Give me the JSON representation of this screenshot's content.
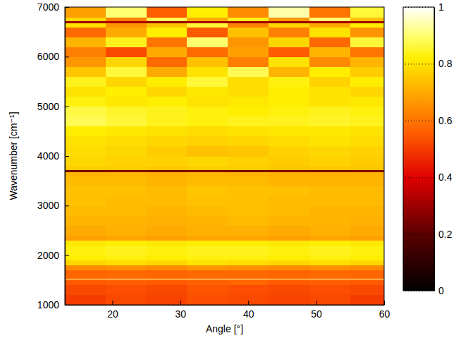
{
  "chart_data": {
    "type": "heatmap",
    "color": "hot",
    "x_label": "Angle [°]",
    "y_label": "Wavenumber [cm⁻¹]",
    "xlim": [
      13,
      60
    ],
    "ylim": [
      1000,
      7000
    ],
    "xticks": [
      20,
      30,
      40,
      50,
      60
    ],
    "yticks": [
      1000,
      2000,
      3000,
      4000,
      5000,
      6000,
      7000
    ],
    "color_range": [
      0,
      1
    ],
    "color_ticks": [
      0,
      0.2,
      0.4,
      0.6,
      0.8,
      1
    ],
    "x_edges": [
      13,
      19,
      25,
      31,
      37,
      43,
      49,
      55,
      60
    ],
    "y_edges": [
      1000,
      1200,
      1400,
      1500,
      1520,
      1540,
      1700,
      1800,
      1900,
      2000,
      2200,
      2300,
      2400,
      2600,
      2800,
      3000,
      3200,
      3400,
      3600,
      3680,
      3720,
      3800,
      4000,
      4200,
      4400,
      4600,
      4800,
      5000,
      5200,
      5400,
      5600,
      5800,
      6000,
      6200,
      6400,
      6600,
      6680,
      6720,
      6800,
      7000
    ],
    "cells": [
      [
        0.5,
        0.52,
        0.51,
        0.53,
        0.52,
        0.51,
        0.52,
        0.5
      ],
      [
        0.52,
        0.53,
        0.52,
        0.54,
        0.53,
        0.52,
        0.53,
        0.52
      ],
      [
        0.55,
        0.56,
        0.55,
        0.56,
        0.57,
        0.55,
        0.56,
        0.55
      ],
      [
        0.58,
        0.58,
        0.59,
        0.58,
        0.59,
        0.58,
        0.58,
        0.59
      ],
      [
        0.93,
        0.94,
        0.93,
        0.94,
        0.94,
        0.93,
        0.94,
        0.93
      ],
      [
        0.57,
        0.58,
        0.57,
        0.58,
        0.58,
        0.57,
        0.58,
        0.57
      ],
      [
        0.64,
        0.65,
        0.64,
        0.66,
        0.65,
        0.64,
        0.65,
        0.64
      ],
      [
        0.78,
        0.79,
        0.78,
        0.8,
        0.79,
        0.78,
        0.79,
        0.78
      ],
      [
        0.82,
        0.83,
        0.82,
        0.83,
        0.83,
        0.82,
        0.83,
        0.82
      ],
      [
        0.83,
        0.84,
        0.83,
        0.84,
        0.84,
        0.83,
        0.84,
        0.83
      ],
      [
        0.81,
        0.82,
        0.81,
        0.82,
        0.82,
        0.81,
        0.82,
        0.81
      ],
      [
        0.68,
        0.69,
        0.68,
        0.69,
        0.69,
        0.68,
        0.69,
        0.68
      ],
      [
        0.7,
        0.71,
        0.7,
        0.71,
        0.71,
        0.7,
        0.71,
        0.7
      ],
      [
        0.72,
        0.72,
        0.71,
        0.72,
        0.73,
        0.72,
        0.72,
        0.71
      ],
      [
        0.73,
        0.73,
        0.72,
        0.73,
        0.74,
        0.73,
        0.72,
        0.72
      ],
      [
        0.74,
        0.73,
        0.73,
        0.74,
        0.74,
        0.73,
        0.73,
        0.73
      ],
      [
        0.74,
        0.74,
        0.73,
        0.75,
        0.74,
        0.74,
        0.73,
        0.73
      ],
      [
        0.73,
        0.73,
        0.72,
        0.73,
        0.73,
        0.72,
        0.72,
        0.72
      ],
      [
        0.72,
        0.72,
        0.71,
        0.72,
        0.72,
        0.71,
        0.71,
        0.71
      ],
      [
        0.25,
        0.26,
        0.25,
        0.26,
        0.25,
        0.26,
        0.25,
        0.26
      ],
      [
        0.76,
        0.76,
        0.75,
        0.76,
        0.76,
        0.75,
        0.75,
        0.75
      ],
      [
        0.78,
        0.77,
        0.77,
        0.78,
        0.77,
        0.76,
        0.77,
        0.76
      ],
      [
        0.79,
        0.78,
        0.76,
        0.74,
        0.75,
        0.77,
        0.78,
        0.77
      ],
      [
        0.8,
        0.79,
        0.78,
        0.77,
        0.78,
        0.79,
        0.8,
        0.79
      ],
      [
        0.82,
        0.81,
        0.8,
        0.79,
        0.8,
        0.81,
        0.81,
        0.8
      ],
      [
        0.88,
        0.86,
        0.84,
        0.83,
        0.84,
        0.84,
        0.85,
        0.84
      ],
      [
        0.87,
        0.85,
        0.84,
        0.83,
        0.82,
        0.83,
        0.84,
        0.83
      ],
      [
        0.83,
        0.81,
        0.82,
        0.8,
        0.81,
        0.82,
        0.8,
        0.81
      ],
      [
        0.8,
        0.82,
        0.78,
        0.81,
        0.79,
        0.82,
        0.8,
        0.78
      ],
      [
        0.84,
        0.78,
        0.82,
        0.86,
        0.79,
        0.83,
        0.77,
        0.82
      ],
      [
        0.75,
        0.86,
        0.7,
        0.8,
        0.88,
        0.72,
        0.82,
        0.76
      ],
      [
        0.66,
        0.78,
        0.58,
        0.74,
        0.62,
        0.8,
        0.64,
        0.72
      ],
      [
        0.62,
        0.52,
        0.7,
        0.58,
        0.68,
        0.55,
        0.72,
        0.6
      ],
      [
        0.72,
        0.84,
        0.6,
        0.9,
        0.66,
        0.78,
        0.58,
        0.86
      ],
      [
        0.58,
        0.7,
        0.82,
        0.55,
        0.74,
        0.62,
        0.8,
        0.66
      ],
      [
        0.8,
        0.66,
        0.74,
        0.86,
        0.62,
        0.78,
        0.7,
        0.82
      ],
      [
        0.3,
        0.32,
        0.28,
        0.31,
        0.3,
        0.29,
        0.31,
        0.3
      ],
      [
        0.78,
        0.62,
        0.88,
        0.7,
        0.84,
        0.66,
        0.9,
        0.74
      ],
      [
        0.68,
        0.9,
        0.56,
        0.82,
        0.64,
        0.94,
        0.6,
        0.86
      ]
    ]
  }
}
